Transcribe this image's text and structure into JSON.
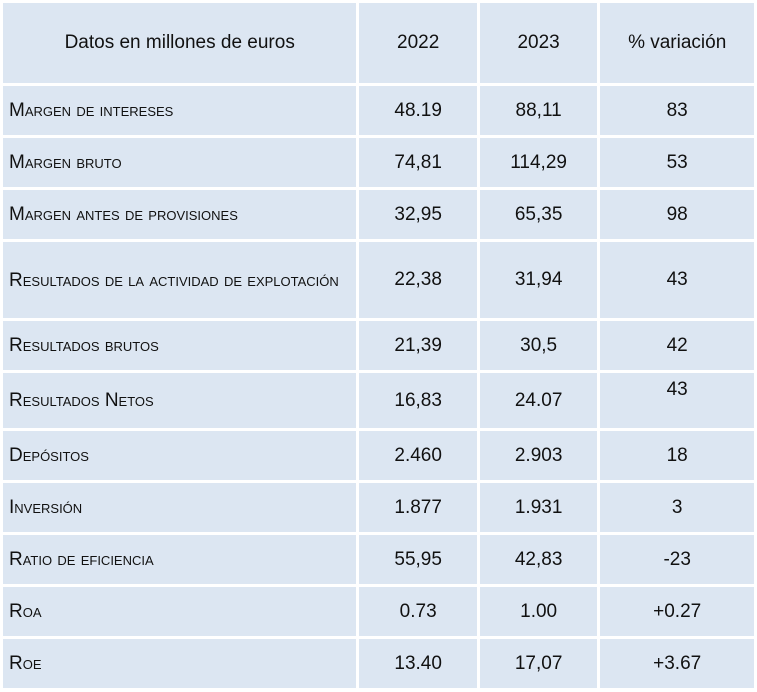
{
  "table": {
    "headers": [
      "Datos en millones de euros",
      "2022",
      "2023",
      "% variación"
    ],
    "rows": [
      {
        "label": "Margen de intereses",
        "v2022": "48.19",
        "v2023": "88,11",
        "var": "83"
      },
      {
        "label": "Margen bruto",
        "v2022": "74,81",
        "v2023": "114,29",
        "var": "53"
      },
      {
        "label": "Margen antes de provisiones",
        "v2022": "32,95",
        "v2023": "65,35",
        "var": "98"
      },
      {
        "label": "Resultados de la actividad de explotación",
        "v2022": "22,38",
        "v2023": "31,94",
        "var": "43"
      },
      {
        "label": "Resultados brutos",
        "v2022": "21,39",
        "v2023": "30,5",
        "var": "42"
      },
      {
        "label": "Resultados Netos",
        "v2022": "16,83",
        "v2023": "24.07",
        "var": "43"
      },
      {
        "label": "Depósitos",
        "v2022": "2.460",
        "v2023": "2.903",
        "var": "18"
      },
      {
        "label": "Inversión",
        "v2022": "1.877",
        "v2023": "1.931",
        "var": "3"
      },
      {
        "label": "Ratio de eficiencia",
        "v2022": "55,95",
        "v2023": "42,83",
        "var": "-23"
      },
      {
        "label": "Roa",
        "v2022": "0.73",
        "v2023": "1.00",
        "var": "+0.27"
      },
      {
        "label": "Roe",
        "v2022": "13.40",
        "v2023": "17,07",
        "var": "+3.67"
      }
    ]
  }
}
